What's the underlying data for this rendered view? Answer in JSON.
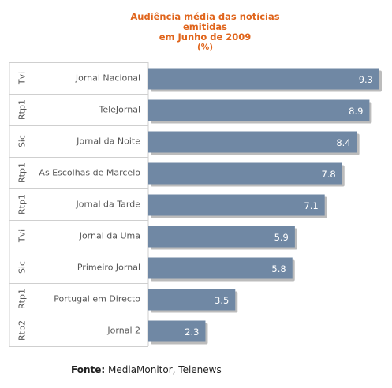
{
  "title": {
    "line1": "Audiência média das notícias emitidas",
    "line2": "em Junho de 2009",
    "unit": "(%)"
  },
  "footer": {
    "label": "Fonte:",
    "text": "MediaMonitor, Telenews"
  },
  "colors": {
    "bar": "#7088a4",
    "shadow": "#bcbcbc",
    "title": "#e0651c",
    "grid": "#cfcfcf",
    "label_text": "#555555"
  },
  "chart_data": {
    "type": "bar",
    "orientation": "horizontal",
    "title": "Audiência média das notícias emitidas em Junho de 2009 (%)",
    "categories": [
      "Jornal Nacional",
      "TeleJornal",
      "Jornal da Noite",
      "As Escolhas de Marcelo",
      "Jornal da Tarde",
      "Jornal da Uma",
      "Primeiro Jornal",
      "Portugal em Directo",
      "Jornal 2"
    ],
    "channels": [
      "Tvi",
      "Rtp1",
      "Sic",
      "Rtp1",
      "Rtp1",
      "Tvi",
      "Sic",
      "Rtp1",
      "Rtp2"
    ],
    "values": [
      9.3,
      8.9,
      8.4,
      7.8,
      7.1,
      5.9,
      5.8,
      3.5,
      2.3
    ],
    "value_labels": [
      "9.3",
      "8.9",
      "8.4",
      "7.8",
      "7.1",
      "5.9",
      "5.8",
      "3.5",
      "2.3"
    ],
    "xlim": [
      0,
      9.3
    ],
    "grid": false,
    "legend": "none"
  }
}
